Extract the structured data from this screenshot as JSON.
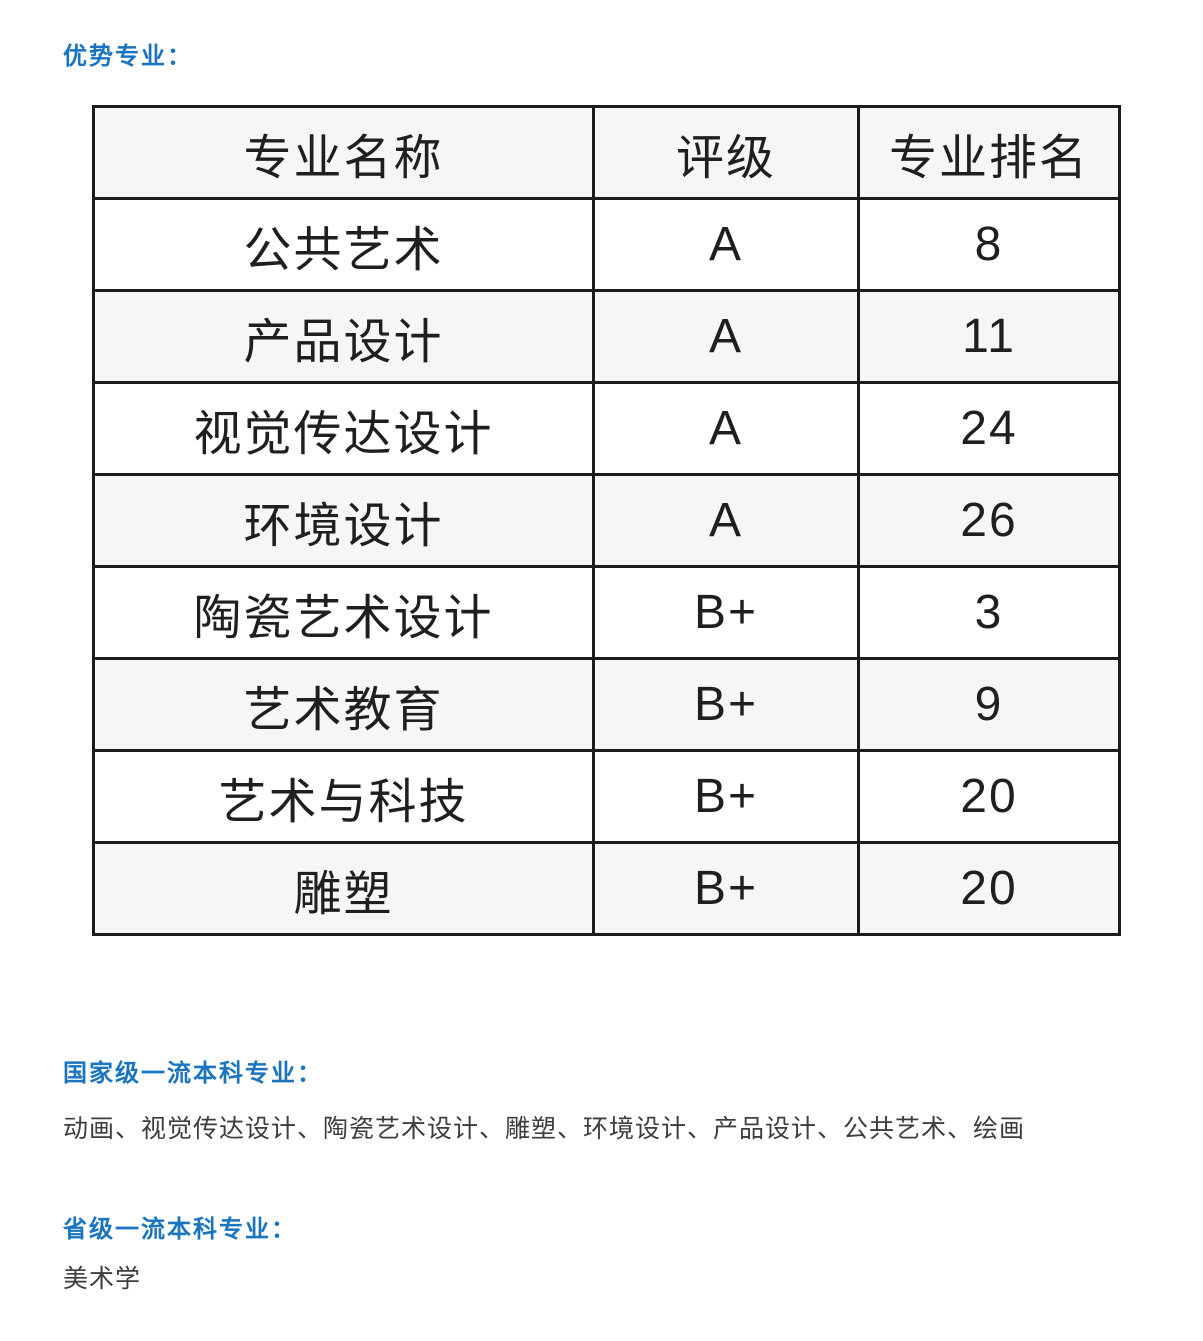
{
  "colors": {
    "accent_blue": "#1a74c0",
    "table_border": "#1c1c1c",
    "table_text": "#1f1f1f",
    "body_text": "#3d3d3d",
    "row_alt_bg": "#f6f6f7",
    "page_bg": "#ffffff"
  },
  "sections": {
    "advantage": {
      "heading": "优势专业："
    },
    "national": {
      "heading": "国家级一流本科专业：",
      "content": "动画、视觉传达设计、陶瓷艺术设计、雕塑、环境设计、产品设计、公共艺术、绘画"
    },
    "provincial": {
      "heading": "省级一流本科专业：",
      "content": "美术学"
    }
  },
  "table": {
    "headers": [
      "专业名称",
      "评级",
      "专业排名"
    ],
    "rows": [
      {
        "major": "公共艺术",
        "rating": "A",
        "rank": "8"
      },
      {
        "major": "产品设计",
        "rating": "A",
        "rank": "11"
      },
      {
        "major": "视觉传达设计",
        "rating": "A",
        "rank": "24"
      },
      {
        "major": "环境设计",
        "rating": "A",
        "rank": "26"
      },
      {
        "major": "陶瓷艺术设计",
        "rating": "B+",
        "rank": "3"
      },
      {
        "major": "艺术教育",
        "rating": "B+",
        "rank": "9"
      },
      {
        "major": "艺术与科技",
        "rating": "B+",
        "rank": "20"
      },
      {
        "major": "雕塑",
        "rating": "B+",
        "rank": "20"
      }
    ]
  }
}
